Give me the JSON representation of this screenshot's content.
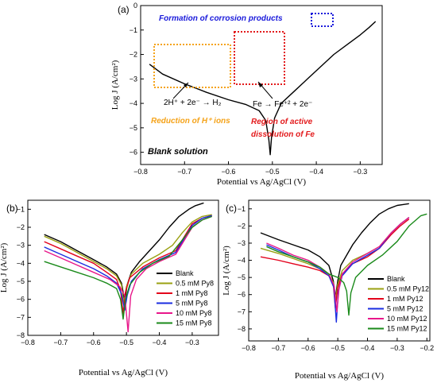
{
  "chart_data": [
    {
      "panel_label": "(a)",
      "type": "line",
      "xlabel": "Potential vs Ag/AgCl (V)",
      "ylabel": "Log J (A/cm²)",
      "xlim": [
        -0.8,
        -0.25
      ],
      "ylim": [
        -6.5,
        0
      ],
      "xticks": [
        "−0.8",
        "−0.7",
        "−0.6",
        "−0.5",
        "−0.4",
        "−0.3"
      ],
      "yticks": [
        "0",
        "−1",
        "−2",
        "−3",
        "−4",
        "−5",
        "−6"
      ],
      "legend_text": "Blank solution",
      "annotations": {
        "corrosion_products": "Formation of corrosion products",
        "reduction_eq": "2H⁺ + 2e⁻ → H₂",
        "reduction_label": "Reduction of H⁺ ions",
        "fe_eq": "Fe → Fe⁺² + 2e⁻",
        "active_label_1": "Region of active",
        "active_label_2": "dissolution of Fe"
      },
      "colors": {
        "corrosion": "#1a1adb",
        "reduction": "#f5a31a",
        "active": "#e31a1c"
      },
      "series": [
        {
          "name": "Blank solution",
          "color": "#000000",
          "points": [
            [
              -0.78,
              -2.4
            ],
            [
              -0.75,
              -2.8
            ],
            [
              -0.7,
              -3.2
            ],
            [
              -0.65,
              -3.55
            ],
            [
              -0.6,
              -3.85
            ],
            [
              -0.56,
              -4.05
            ],
            [
              -0.53,
              -4.3
            ],
            [
              -0.515,
              -4.7
            ],
            [
              -0.508,
              -5.5
            ],
            [
              -0.505,
              -6.1
            ],
            [
              -0.502,
              -5.4
            ],
            [
              -0.495,
              -4.6
            ],
            [
              -0.48,
              -4.0
            ],
            [
              -0.45,
              -3.5
            ],
            [
              -0.42,
              -3.0
            ],
            [
              -0.39,
              -2.5
            ],
            [
              -0.36,
              -2.0
            ],
            [
              -0.33,
              -1.6
            ],
            [
              -0.3,
              -1.2
            ],
            [
              -0.28,
              -0.9
            ],
            [
              -0.265,
              -0.65
            ]
          ]
        }
      ]
    },
    {
      "panel_label": "(b)",
      "type": "line",
      "xlabel": "Potential vs Ag/AgCl (V)",
      "ylabel": "Log J (A/cm²)",
      "xlim": [
        -0.8,
        -0.22
      ],
      "ylim": [
        -8,
        -0.5
      ],
      "xticks": [
        "−0.8",
        "−0.7",
        "−0.6",
        "−0.5",
        "−0.4",
        "−0.3"
      ],
      "yticks": [
        "−1",
        "−2",
        "−3",
        "−4",
        "−5",
        "−6",
        "−7",
        "−8"
      ],
      "series": [
        {
          "name": "Blank",
          "color": "#000000",
          "points": [
            [
              -0.75,
              -2.4
            ],
            [
              -0.7,
              -2.8
            ],
            [
              -0.65,
              -3.3
            ],
            [
              -0.6,
              -3.8
            ],
            [
              -0.56,
              -4.2
            ],
            [
              -0.53,
              -4.6
            ],
            [
              -0.515,
              -5.1
            ],
            [
              -0.505,
              -6.1
            ],
            [
              -0.498,
              -5.2
            ],
            [
              -0.485,
              -4.5
            ],
            [
              -0.46,
              -3.9
            ],
            [
              -0.43,
              -3.3
            ],
            [
              -0.4,
              -2.7
            ],
            [
              -0.37,
              -2.0
            ],
            [
              -0.34,
              -1.4
            ],
            [
              -0.31,
              -1.0
            ],
            [
              -0.29,
              -0.8
            ],
            [
              -0.265,
              -0.65
            ]
          ]
        },
        {
          "name": "0.5 mM Py8",
          "color": "#9aa012",
          "points": [
            [
              -0.75,
              -2.5
            ],
            [
              -0.7,
              -2.9
            ],
            [
              -0.65,
              -3.4
            ],
            [
              -0.6,
              -3.9
            ],
            [
              -0.56,
              -4.3
            ],
            [
              -0.53,
              -4.7
            ],
            [
              -0.515,
              -5.2
            ],
            [
              -0.508,
              -6.2
            ],
            [
              -0.5,
              -5.3
            ],
            [
              -0.485,
              -4.6
            ],
            [
              -0.45,
              -4.0
            ],
            [
              -0.4,
              -3.5
            ],
            [
              -0.36,
              -3.0
            ],
            [
              -0.33,
              -2.3
            ],
            [
              -0.3,
              -1.7
            ],
            [
              -0.27,
              -1.4
            ],
            [
              -0.24,
              -1.3
            ]
          ]
        },
        {
          "name": "1 mM Py8",
          "color": "#e3001b",
          "points": [
            [
              -0.75,
              -2.8
            ],
            [
              -0.7,
              -3.2
            ],
            [
              -0.65,
              -3.6
            ],
            [
              -0.6,
              -4.0
            ],
            [
              -0.56,
              -4.5
            ],
            [
              -0.53,
              -4.9
            ],
            [
              -0.518,
              -5.5
            ],
            [
              -0.51,
              -6.8
            ],
            [
              -0.503,
              -5.6
            ],
            [
              -0.49,
              -4.8
            ],
            [
              -0.45,
              -4.2
            ],
            [
              -0.4,
              -3.7
            ],
            [
              -0.35,
              -3.3
            ],
            [
              -0.32,
              -2.4
            ],
            [
              -0.3,
              -1.8
            ],
            [
              -0.27,
              -1.5
            ],
            [
              -0.24,
              -1.35
            ]
          ]
        },
        {
          "name": "5 mM Py8",
          "color": "#1a2ce0",
          "points": [
            [
              -0.75,
              -3.1
            ],
            [
              -0.7,
              -3.5
            ],
            [
              -0.65,
              -3.9
            ],
            [
              -0.6,
              -4.3
            ],
            [
              -0.56,
              -4.7
            ],
            [
              -0.53,
              -5.1
            ],
            [
              -0.515,
              -5.7
            ],
            [
              -0.505,
              -6.6
            ],
            [
              -0.498,
              -5.8
            ],
            [
              -0.485,
              -5.0
            ],
            [
              -0.45,
              -4.3
            ],
            [
              -0.4,
              -3.8
            ],
            [
              -0.35,
              -3.4
            ],
            [
              -0.32,
              -2.5
            ],
            [
              -0.3,
              -1.9
            ],
            [
              -0.27,
              -1.5
            ],
            [
              -0.24,
              -1.35
            ]
          ]
        },
        {
          "name": "10 mM Py8",
          "color": "#e8178a",
          "points": [
            [
              -0.75,
              -3.3
            ],
            [
              -0.7,
              -3.7
            ],
            [
              -0.65,
              -4.1
            ],
            [
              -0.6,
              -4.5
            ],
            [
              -0.55,
              -4.9
            ],
            [
              -0.52,
              -5.3
            ],
            [
              -0.505,
              -5.8
            ],
            [
              -0.495,
              -7.8
            ],
            [
              -0.487,
              -5.8
            ],
            [
              -0.47,
              -4.9
            ],
            [
              -0.44,
              -4.3
            ],
            [
              -0.4,
              -3.9
            ],
            [
              -0.35,
              -3.5
            ],
            [
              -0.32,
              -2.6
            ],
            [
              -0.3,
              -2.0
            ],
            [
              -0.27,
              -1.6
            ],
            [
              -0.24,
              -1.4
            ]
          ]
        },
        {
          "name": "15 mM Py8",
          "color": "#1a8a1a",
          "points": [
            [
              -0.75,
              -3.9
            ],
            [
              -0.7,
              -4.2
            ],
            [
              -0.65,
              -4.5
            ],
            [
              -0.6,
              -4.8
            ],
            [
              -0.56,
              -5.1
            ],
            [
              -0.53,
              -5.4
            ],
            [
              -0.518,
              -6.0
            ],
            [
              -0.51,
              -7.1
            ],
            [
              -0.503,
              -6.0
            ],
            [
              -0.49,
              -5.2
            ],
            [
              -0.46,
              -4.5
            ],
            [
              -0.42,
              -4.0
            ],
            [
              -0.37,
              -3.6
            ],
            [
              -0.33,
              -2.7
            ],
            [
              -0.3,
              -2.0
            ],
            [
              -0.27,
              -1.6
            ],
            [
              -0.24,
              -1.4
            ]
          ]
        }
      ]
    },
    {
      "panel_label": "(c)",
      "type": "line",
      "xlabel": "Potential vs Ag/AgCl (V)",
      "ylabel": "Log J (A/cm²)",
      "xlim": [
        -0.8,
        -0.19
      ],
      "ylim": [
        -8.7,
        -0.5
      ],
      "xticks": [
        "−0.8",
        "−0.7",
        "−0.6",
        "−0.5",
        "−0.4",
        "−0.3",
        "−0.2"
      ],
      "yticks": [
        "−1",
        "−2",
        "−3",
        "−4",
        "−5",
        "−6",
        "−7",
        "−8"
      ],
      "series": [
        {
          "name": "Blank",
          "color": "#000000",
          "points": [
            [
              -0.76,
              -2.4
            ],
            [
              -0.7,
              -2.8
            ],
            [
              -0.65,
              -3.1
            ],
            [
              -0.6,
              -3.4
            ],
            [
              -0.56,
              -3.8
            ],
            [
              -0.53,
              -4.3
            ],
            [
              -0.515,
              -5.2
            ],
            [
              -0.508,
              -6.2
            ],
            [
              -0.5,
              -5.2
            ],
            [
              -0.49,
              -4.3
            ],
            [
              -0.47,
              -3.7
            ],
            [
              -0.45,
              -3.1
            ],
            [
              -0.42,
              -2.4
            ],
            [
              -0.39,
              -1.8
            ],
            [
              -0.36,
              -1.3
            ],
            [
              -0.33,
              -1.0
            ],
            [
              -0.3,
              -0.8
            ],
            [
              -0.26,
              -0.7
            ]
          ]
        },
        {
          "name": "0.5 mM Py12",
          "color": "#9aa012",
          "points": [
            [
              -0.76,
              -3.3
            ],
            [
              -0.7,
              -3.6
            ],
            [
              -0.65,
              -3.9
            ],
            [
              -0.6,
              -4.2
            ],
            [
              -0.56,
              -4.5
            ],
            [
              -0.53,
              -4.8
            ],
            [
              -0.515,
              -5.3
            ],
            [
              -0.508,
              -6.4
            ],
            [
              -0.5,
              -5.4
            ],
            [
              -0.485,
              -4.6
            ],
            [
              -0.45,
              -4.0
            ],
            [
              -0.4,
              -3.6
            ],
            [
              -0.36,
              -3.2
            ],
            [
              -0.32,
              -2.4
            ],
            [
              -0.29,
              -1.9
            ],
            [
              -0.26,
              -1.5
            ]
          ]
        },
        {
          "name": "1 mM Py12",
          "color": "#e3001b",
          "points": [
            [
              -0.76,
              -3.8
            ],
            [
              -0.7,
              -4.0
            ],
            [
              -0.65,
              -4.2
            ],
            [
              -0.6,
              -4.4
            ],
            [
              -0.56,
              -4.6
            ],
            [
              -0.53,
              -4.9
            ],
            [
              -0.515,
              -5.4
            ],
            [
              -0.508,
              -6.8
            ],
            [
              -0.5,
              -5.6
            ],
            [
              -0.485,
              -4.8
            ],
            [
              -0.45,
              -4.2
            ],
            [
              -0.4,
              -3.8
            ],
            [
              -0.36,
              -3.3
            ],
            [
              -0.32,
              -2.5
            ],
            [
              -0.29,
              -2.0
            ],
            [
              -0.26,
              -1.6
            ]
          ]
        },
        {
          "name": "5 mM Py12",
          "color": "#1a2ce0",
          "points": [
            [
              -0.74,
              -3.1
            ],
            [
              -0.7,
              -3.4
            ],
            [
              -0.65,
              -3.8
            ],
            [
              -0.6,
              -4.1
            ],
            [
              -0.56,
              -4.5
            ],
            [
              -0.53,
              -4.9
            ],
            [
              -0.513,
              -5.6
            ],
            [
              -0.505,
              -7.6
            ],
            [
              -0.498,
              -5.8
            ],
            [
              -0.485,
              -4.9
            ],
            [
              -0.45,
              -4.2
            ],
            [
              -0.4,
              -3.7
            ],
            [
              -0.36,
              -3.3
            ],
            [
              -0.32,
              -2.4
            ],
            [
              -0.29,
              -1.9
            ],
            [
              -0.26,
              -1.5
            ]
          ]
        },
        {
          "name": "10 mM Py12",
          "color": "#e8178a",
          "points": [
            [
              -0.74,
              -3.0
            ],
            [
              -0.7,
              -3.3
            ],
            [
              -0.65,
              -3.7
            ],
            [
              -0.6,
              -4.0
            ],
            [
              -0.56,
              -4.4
            ],
            [
              -0.53,
              -4.8
            ],
            [
              -0.512,
              -5.5
            ],
            [
              -0.503,
              -7.0
            ],
            [
              -0.496,
              -5.7
            ],
            [
              -0.485,
              -4.8
            ],
            [
              -0.45,
              -4.1
            ],
            [
              -0.4,
              -3.6
            ],
            [
              -0.36,
              -3.2
            ],
            [
              -0.32,
              -2.4
            ],
            [
              -0.29,
              -1.9
            ],
            [
              -0.26,
              -1.5
            ]
          ]
        },
        {
          "name": "15 mM Py12",
          "color": "#1a8a1a",
          "points": [
            [
              -0.74,
              -3.2
            ],
            [
              -0.7,
              -3.5
            ],
            [
              -0.65,
              -3.8
            ],
            [
              -0.6,
              -4.1
            ],
            [
              -0.56,
              -4.4
            ],
            [
              -0.53,
              -4.8
            ],
            [
              -0.5,
              -5.0
            ],
            [
              -0.48,
              -5.3
            ],
            [
              -0.47,
              -5.8
            ],
            [
              -0.463,
              -7.2
            ],
            [
              -0.456,
              -5.9
            ],
            [
              -0.44,
              -5.0
            ],
            [
              -0.4,
              -4.3
            ],
            [
              -0.35,
              -3.7
            ],
            [
              -0.3,
              -2.9
            ],
            [
              -0.26,
              -2.0
            ],
            [
              -0.22,
              -1.4
            ],
            [
              -0.2,
              -1.3
            ]
          ]
        }
      ]
    }
  ]
}
